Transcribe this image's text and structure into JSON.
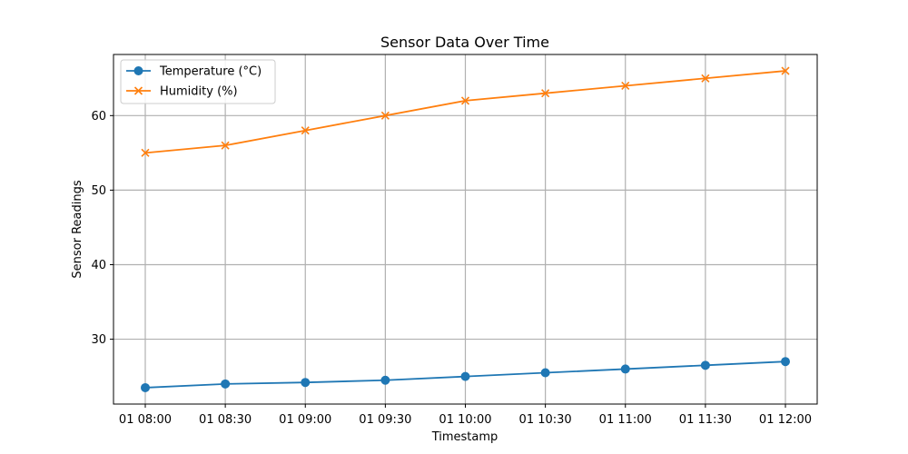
{
  "chart_data": {
    "type": "line",
    "title": "Sensor Data Over Time",
    "xlabel": "Timestamp",
    "ylabel": "Sensor Readings",
    "x": [
      "01 08:00",
      "01 08:30",
      "01 09:00",
      "01 09:30",
      "01 10:00",
      "01 10:30",
      "01 11:00",
      "01 11:30",
      "01 12:00"
    ],
    "ylim": [
      21.3,
      68.2
    ],
    "yticks": [
      30,
      40,
      50,
      60
    ],
    "grid": true,
    "legend_position": "top-left",
    "series": [
      {
        "name": "Temperature (°C)",
        "color": "#1f77b4",
        "marker": "circle",
        "values": [
          23.5,
          24.0,
          24.2,
          24.5,
          25.0,
          25.5,
          26.0,
          26.5,
          27.0
        ]
      },
      {
        "name": "Humidity (%)",
        "color": "#ff7f0e",
        "marker": "x",
        "values": [
          55,
          56,
          58,
          60,
          62,
          63,
          64,
          65,
          66
        ]
      }
    ]
  }
}
